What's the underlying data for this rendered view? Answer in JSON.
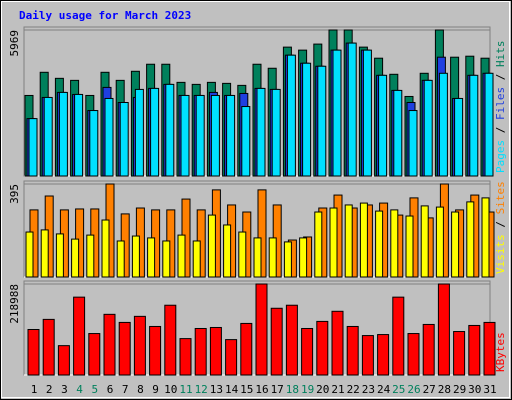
{
  "title": "Daily usage for March 2023",
  "legend_separator": " / ",
  "categories": [
    "1",
    "2",
    "3",
    "4",
    "5",
    "6",
    "7",
    "8",
    "9",
    "10",
    "11",
    "12",
    "13",
    "14",
    "15",
    "16",
    "17",
    "18",
    "19",
    "20",
    "21",
    "22",
    "23",
    "24",
    "25",
    "26",
    "27",
    "28",
    "29",
    "30",
    "31"
  ],
  "category_colors": [
    "#000000",
    "#000000",
    "#000000",
    "#00805c",
    "#00805c",
    "#000000",
    "#000000",
    "#000000",
    "#000000",
    "#000000",
    "#00805c",
    "#00805c",
    "#000000",
    "#000000",
    "#000000",
    "#000000",
    "#000000",
    "#00805c",
    "#00805c",
    "#000000",
    "#000000",
    "#000000",
    "#000000",
    "#000000",
    "#00805c",
    "#00805c",
    "#000000",
    "#000000",
    "#000000",
    "#000000",
    "#000000"
  ],
  "chart_data": [
    {
      "type": "bar",
      "ylim": [
        0,
        5969
      ],
      "yticks": [
        5969
      ],
      "series": [
        {
          "name": "Hits",
          "color": "#00805c",
          "values": [
            3293,
            4240,
            3993,
            3910,
            3293,
            4240,
            3910,
            4281,
            4569,
            4569,
            3828,
            3746,
            3828,
            3787,
            3705,
            4569,
            4405,
            5269,
            5146,
            5393,
            5969,
            5969,
            5269,
            4816,
            4158,
            3252,
            4199,
            5969,
            4857,
            4898,
            4816
          ]
        },
        {
          "name": "Files",
          "color": "#1f3fe0",
          "values": [
            2346,
            3211,
            3417,
            3334,
            2676,
            3622,
            3005,
            3211,
            3581,
            3746,
            3293,
            3293,
            3417,
            3293,
            3375,
            3581,
            3540,
            4940,
            4610,
            4487,
            5146,
            5434,
            5146,
            4116,
            3499,
            3005,
            3910,
            4857,
            3170,
            4116,
            4199
          ]
        },
        {
          "name": "Pages",
          "color": "#00e0ff",
          "values": [
            2346,
            3211,
            3417,
            3334,
            2676,
            3170,
            3005,
            3540,
            3581,
            3746,
            3293,
            3293,
            3293,
            3293,
            2840,
            3581,
            3540,
            4940,
            4610,
            4487,
            5146,
            5434,
            5146,
            4116,
            3499,
            2676,
            3910,
            4199,
            3170,
            4116,
            4199
          ]
        }
      ]
    },
    {
      "type": "bar",
      "ylim": [
        0,
        395
      ],
      "yticks": [
        395
      ],
      "series": [
        {
          "name": "Sites",
          "color": "#ff8000",
          "values": [
            285,
            344,
            285,
            289,
            289,
            395,
            268,
            293,
            285,
            285,
            331,
            285,
            370,
            306,
            276,
            370,
            306,
            157,
            170,
            293,
            348,
            293,
            306,
            314,
            263,
            336,
            251,
            395,
            285,
            348,
            276
          ]
        },
        {
          "name": "Visits",
          "color": "#ffff00",
          "values": [
            191,
            200,
            183,
            161,
            178,
            242,
            153,
            174,
            166,
            153,
            178,
            153,
            263,
            221,
            191,
            166,
            166,
            149,
            166,
            276,
            293,
            306,
            314,
            280,
            285,
            259,
            302,
            297,
            276,
            319,
            336
          ]
        }
      ]
    },
    {
      "type": "bar",
      "ylim": [
        0,
        218988
      ],
      "yticks": [
        218988
      ],
      "series": [
        {
          "name": "KBytes",
          "color": "#ff0000",
          "values": [
            109494,
            133828,
            70646,
            187357,
            99762,
            145995,
            126528,
            141128,
            116794,
            167891,
            87594,
            111927,
            114360,
            85161,
            124094,
            218988,
            160591,
            167891,
            111927,
            128961,
            153291,
            116794,
            94895,
            97328,
            187357,
            99762,
            121661,
            218988,
            104628,
            119227,
            126528
          ]
        }
      ]
    }
  ]
}
